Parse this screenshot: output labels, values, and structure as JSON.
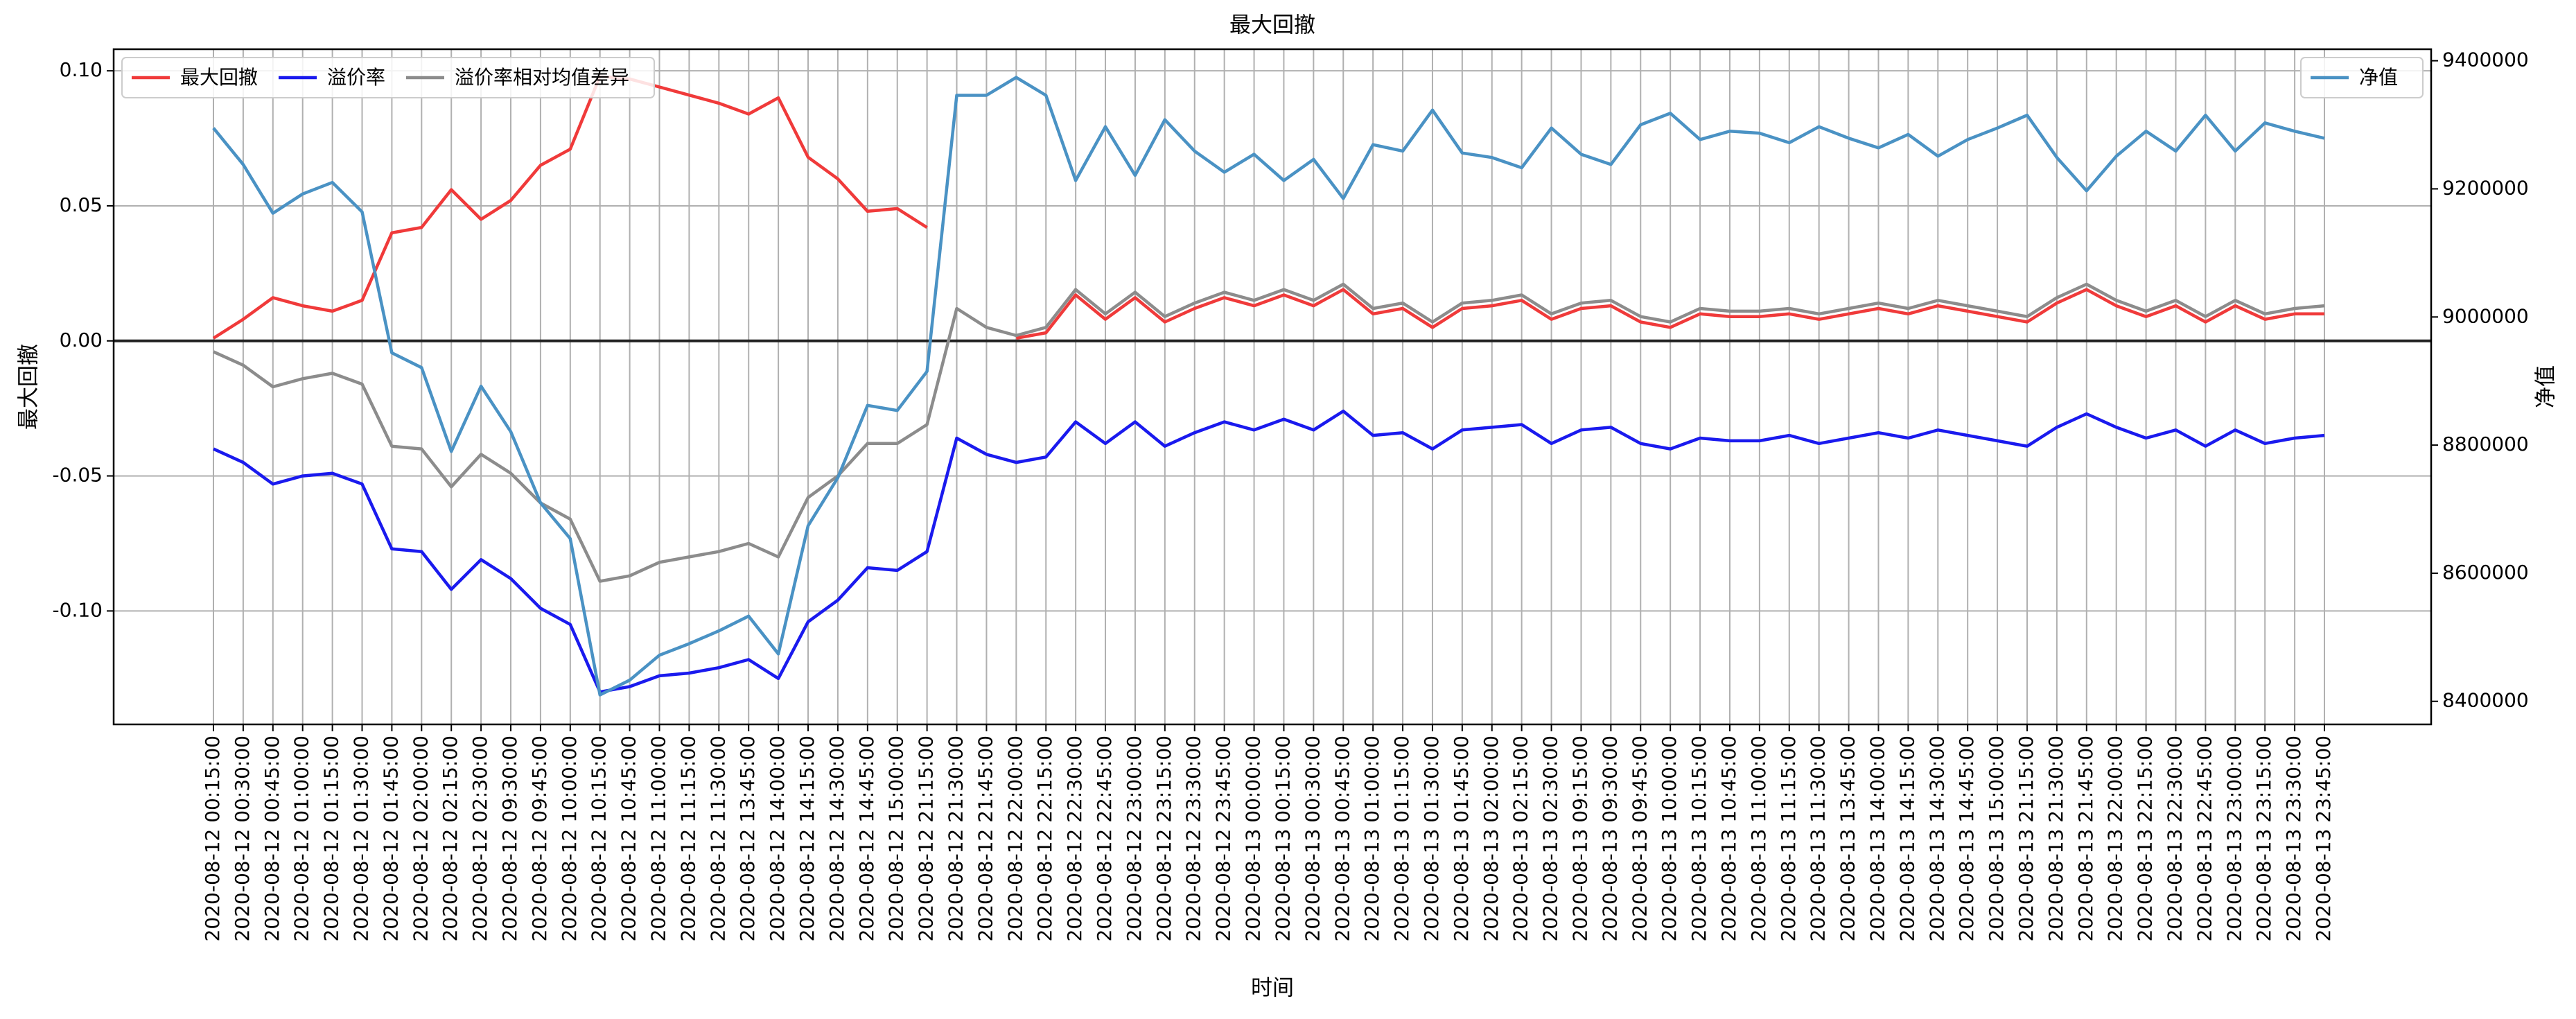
{
  "chart_data": {
    "type": "line",
    "title": "最大回撤",
    "xlabel": "时间",
    "ylabel": "最大回撤",
    "y2label": "净值",
    "categories": [
      "2020-08-12 00:15:00",
      "2020-08-12 00:30:00",
      "2020-08-12 00:45:00",
      "2020-08-12 01:00:00",
      "2020-08-12 01:15:00",
      "2020-08-12 01:30:00",
      "2020-08-12 01:45:00",
      "2020-08-12 02:00:00",
      "2020-08-12 02:15:00",
      "2020-08-12 02:30:00",
      "2020-08-12 09:30:00",
      "2020-08-12 09:45:00",
      "2020-08-12 10:00:00",
      "2020-08-12 10:15:00",
      "2020-08-12 10:45:00",
      "2020-08-12 11:00:00",
      "2020-08-12 11:15:00",
      "2020-08-12 11:30:00",
      "2020-08-12 13:45:00",
      "2020-08-12 14:00:00",
      "2020-08-12 14:15:00",
      "2020-08-12 14:30:00",
      "2020-08-12 14:45:00",
      "2020-08-12 15:00:00",
      "2020-08-12 21:15:00",
      "2020-08-12 21:30:00",
      "2020-08-12 21:45:00",
      "2020-08-12 22:00:00",
      "2020-08-12 22:15:00",
      "2020-08-12 22:30:00",
      "2020-08-12 22:45:00",
      "2020-08-12 23:00:00",
      "2020-08-12 23:15:00",
      "2020-08-12 23:30:00",
      "2020-08-12 23:45:00",
      "2020-08-13 00:00:00",
      "2020-08-13 00:15:00",
      "2020-08-13 00:30:00",
      "2020-08-13 00:45:00",
      "2020-08-13 01:00:00",
      "2020-08-13 01:15:00",
      "2020-08-13 01:30:00",
      "2020-08-13 01:45:00",
      "2020-08-13 02:00:00",
      "2020-08-13 02:15:00",
      "2020-08-13 02:30:00",
      "2020-08-13 09:15:00",
      "2020-08-13 09:30:00",
      "2020-08-13 09:45:00",
      "2020-08-13 10:00:00",
      "2020-08-13 10:15:00",
      "2020-08-13 10:45:00",
      "2020-08-13 11:00:00",
      "2020-08-13 11:15:00",
      "2020-08-13 11:30:00",
      "2020-08-13 13:45:00",
      "2020-08-13 14:00:00",
      "2020-08-13 14:15:00",
      "2020-08-13 14:30:00",
      "2020-08-13 14:45:00",
      "2020-08-13 15:00:00",
      "2020-08-13 21:15:00",
      "2020-08-13 21:30:00",
      "2020-08-13 21:45:00",
      "2020-08-13 22:00:00",
      "2020-08-13 22:15:00",
      "2020-08-13 22:30:00",
      "2020-08-13 22:45:00",
      "2020-08-13 23:00:00",
      "2020-08-13 23:15:00",
      "2020-08-13 23:30:00",
      "2020-08-13 23:45:00"
    ],
    "series": [
      {
        "name": "最大回撤",
        "color": "#f03a3a",
        "values": [
          0.001,
          0.008,
          0.016,
          0.013,
          0.011,
          0.015,
          0.04,
          0.042,
          0.056,
          0.045,
          0.052,
          0.065,
          0.071,
          0.098,
          0.097,
          0.094,
          0.091,
          0.088,
          0.084,
          0.09,
          0.068,
          0.06,
          0.048,
          0.049,
          0.042,
          null,
          null,
          0.001,
          0.003,
          0.017,
          0.008,
          0.016,
          0.007,
          0.012,
          0.016,
          0.013,
          0.017,
          0.013,
          0.019,
          0.01,
          0.012,
          0.005,
          0.012,
          0.013,
          0.015,
          0.008,
          0.012,
          0.013,
          0.007,
          0.005,
          0.01,
          0.009,
          0.009,
          0.01,
          0.008,
          0.01,
          0.012,
          0.01,
          0.013,
          0.011,
          0.009,
          0.007,
          0.014,
          0.019,
          0.013,
          0.009,
          0.013,
          0.007,
          0.013,
          0.008,
          0.01,
          0.01
        ]
      },
      {
        "name": "溢价率",
        "color": "#1a1aee",
        "values": [
          -0.04,
          -0.045,
          -0.053,
          -0.05,
          -0.049,
          -0.053,
          -0.077,
          -0.078,
          -0.092,
          -0.081,
          -0.088,
          -0.099,
          -0.105,
          -0.13,
          -0.128,
          -0.124,
          -0.123,
          -0.121,
          -0.118,
          -0.125,
          -0.104,
          -0.096,
          -0.084,
          -0.085,
          -0.078,
          -0.036,
          -0.042,
          -0.045,
          -0.043,
          -0.03,
          -0.038,
          -0.03,
          -0.039,
          -0.034,
          -0.03,
          -0.033,
          -0.029,
          -0.033,
          -0.026,
          -0.035,
          -0.034,
          -0.04,
          -0.033,
          -0.032,
          -0.031,
          -0.038,
          -0.033,
          -0.032,
          -0.038,
          -0.04,
          -0.036,
          -0.037,
          -0.037,
          -0.035,
          -0.038,
          -0.036,
          -0.034,
          -0.036,
          -0.033,
          -0.035,
          -0.037,
          -0.039,
          -0.032,
          -0.027,
          -0.032,
          -0.036,
          -0.033,
          -0.039,
          -0.033,
          -0.038,
          -0.036,
          -0.035
        ]
      },
      {
        "name": "溢价率相对均值差异",
        "color": "#8c8c8c",
        "values": [
          -0.004,
          -0.009,
          -0.017,
          -0.014,
          -0.012,
          -0.016,
          -0.039,
          -0.04,
          -0.054,
          -0.042,
          -0.049,
          -0.06,
          -0.066,
          -0.089,
          -0.087,
          -0.082,
          -0.08,
          -0.078,
          -0.075,
          -0.08,
          -0.058,
          -0.05,
          -0.038,
          -0.038,
          -0.031,
          0.012,
          0.005,
          0.002,
          0.005,
          0.019,
          0.01,
          0.018,
          0.009,
          0.014,
          0.018,
          0.015,
          0.019,
          0.015,
          0.021,
          0.012,
          0.014,
          0.007,
          0.014,
          0.015,
          0.017,
          0.01,
          0.014,
          0.015,
          0.009,
          0.007,
          0.012,
          0.011,
          0.011,
          0.012,
          0.01,
          0.012,
          0.014,
          0.012,
          0.015,
          0.013,
          0.011,
          0.009,
          0.016,
          0.021,
          0.015,
          0.011,
          0.015,
          0.009,
          0.015,
          0.01,
          0.012,
          0.013
        ]
      },
      {
        "name": "净值",
        "color": "#4a92c4",
        "axis": "y2",
        "values": [
          9295000,
          9238000,
          9162000,
          9192000,
          9210000,
          9164000,
          8944000,
          8921000,
          8790000,
          8892000,
          8821000,
          8710000,
          8654000,
          8410000,
          8433000,
          8472000,
          8490000,
          8510000,
          8533000,
          8474000,
          8674000,
          8749000,
          8862000,
          8854000,
          8915000,
          9346000,
          9346000,
          9374000,
          9346000,
          9213000,
          9297000,
          9221000,
          9308000,
          9259000,
          9226000,
          9254000,
          9213000,
          9246000,
          9185000,
          9269000,
          9259000,
          9323000,
          9256000,
          9249000,
          9233000,
          9295000,
          9254000,
          9238000,
          9300000,
          9318000,
          9277000,
          9290000,
          9287000,
          9272000,
          9297000,
          9279000,
          9264000,
          9285000,
          9251000,
          9277000,
          9295000,
          9315000,
          9249000,
          9197000,
          9251000,
          9290000,
          9259000,
          9315000,
          9259000,
          9303000,
          9290000,
          9279000
        ]
      }
    ],
    "ylim": [
      -0.142,
      0.108
    ],
    "yticks": [
      {
        "value": -0.1,
        "label": "-0.10"
      },
      {
        "value": -0.05,
        "label": "-0.05"
      },
      {
        "value": 0,
        "label": "0.00"
      },
      {
        "value": 0.05,
        "label": "0.05"
      },
      {
        "value": 0.1,
        "label": "0.10"
      }
    ],
    "y2lim": [
      8364000,
      9418000
    ],
    "y2ticks": [
      8400000,
      8600000,
      8800000,
      9000000,
      9200000,
      9400000
    ],
    "hline": 0,
    "grid": true,
    "legend": {
      "y": "upper left",
      "y2": "upper right"
    }
  }
}
